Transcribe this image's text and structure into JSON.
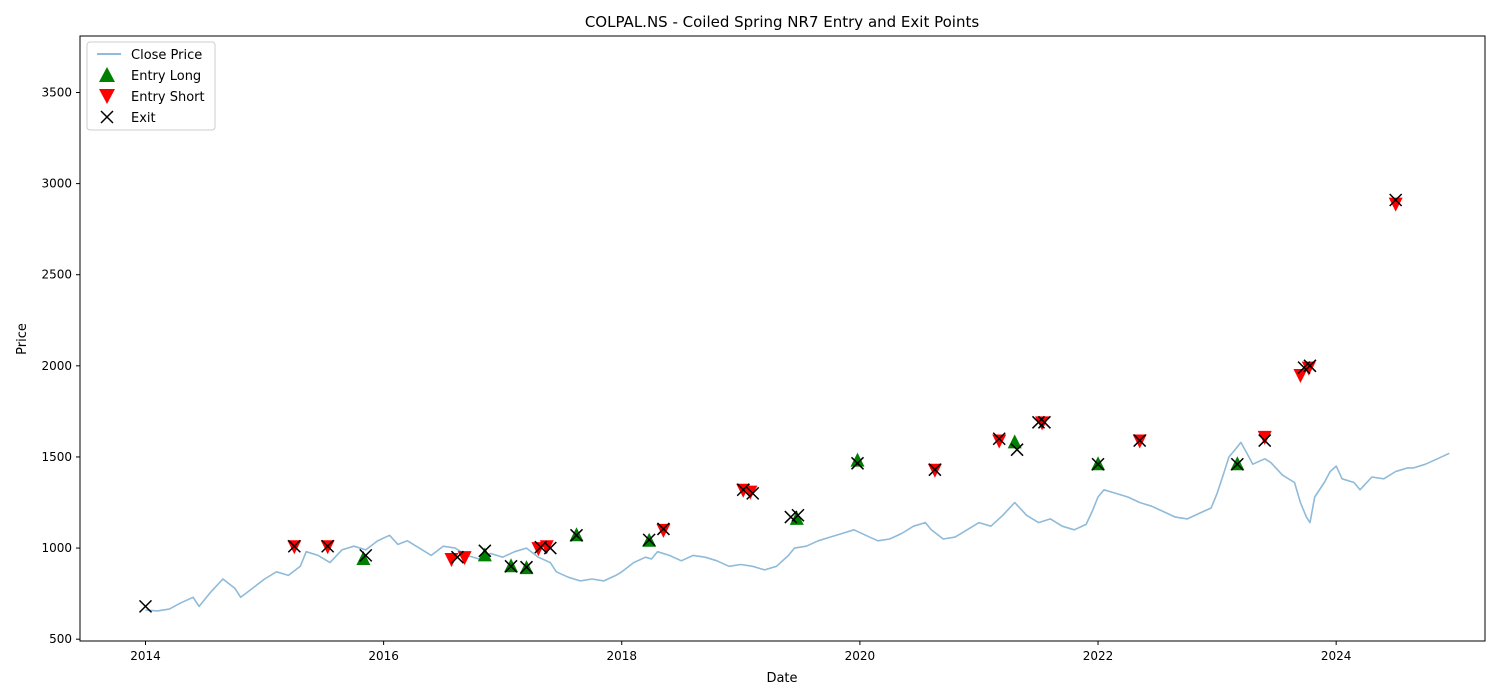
{
  "chart_data": {
    "type": "line",
    "title": "COLPAL.NS - Coiled Spring NR7 Entry and Exit Points",
    "xlabel": "Date",
    "ylabel": "Price",
    "xlim": [
      2013.45,
      2025.25
    ],
    "ylim": [
      490,
      3810
    ],
    "x_ticks": [
      2014,
      2016,
      2018,
      2020,
      2022,
      2024
    ],
    "x_tick_labels": [
      "2014",
      "2016",
      "2018",
      "2020",
      "2022",
      "2024"
    ],
    "y_ticks": [
      500,
      1000,
      1500,
      2000,
      2500,
      3000,
      3500
    ],
    "y_tick_labels": [
      "500",
      "1000",
      "1500",
      "2000",
      "2500",
      "3000",
      "3500"
    ],
    "legend_position": "top-left",
    "colors": {
      "close": "#1f77b4",
      "entry_long": "#008000",
      "entry_short": "#ff0000",
      "exit": "#000000"
    },
    "series": [
      {
        "name": "Close Price",
        "legend_label": "Close Price",
        "points": [
          [
            2014.0,
            660
          ],
          [
            2014.1,
            655
          ],
          [
            2014.2,
            665
          ],
          [
            2014.3,
            700
          ],
          [
            2014.4,
            730
          ],
          [
            2014.45,
            680
          ],
          [
            2014.55,
            760
          ],
          [
            2014.65,
            830
          ],
          [
            2014.75,
            780
          ],
          [
            2014.8,
            730
          ],
          [
            2014.9,
            780
          ],
          [
            2015.0,
            830
          ],
          [
            2015.1,
            870
          ],
          [
            2015.2,
            850
          ],
          [
            2015.3,
            900
          ],
          [
            2015.35,
            980
          ],
          [
            2015.45,
            960
          ],
          [
            2015.55,
            920
          ],
          [
            2015.65,
            990
          ],
          [
            2015.75,
            1010
          ],
          [
            2015.85,
            990
          ],
          [
            2015.95,
            1040
          ],
          [
            2016.05,
            1070
          ],
          [
            2016.12,
            1020
          ],
          [
            2016.2,
            1040
          ],
          [
            2016.3,
            1000
          ],
          [
            2016.4,
            960
          ],
          [
            2016.5,
            1010
          ],
          [
            2016.6,
            1000
          ],
          [
            2016.7,
            960
          ],
          [
            2016.8,
            940
          ],
          [
            2016.9,
            970
          ],
          [
            2017.0,
            950
          ],
          [
            2017.1,
            980
          ],
          [
            2017.2,
            1000
          ],
          [
            2017.3,
            950
          ],
          [
            2017.4,
            920
          ],
          [
            2017.45,
            870
          ],
          [
            2017.55,
            840
          ],
          [
            2017.65,
            820
          ],
          [
            2017.75,
            830
          ],
          [
            2017.85,
            820
          ],
          [
            2017.95,
            850
          ],
          [
            2018.0,
            870
          ],
          [
            2018.1,
            920
          ],
          [
            2018.2,
            950
          ],
          [
            2018.25,
            940
          ],
          [
            2018.3,
            980
          ],
          [
            2018.4,
            960
          ],
          [
            2018.5,
            930
          ],
          [
            2018.6,
            960
          ],
          [
            2018.7,
            950
          ],
          [
            2018.8,
            930
          ],
          [
            2018.9,
            900
          ],
          [
            2019.0,
            910
          ],
          [
            2019.1,
            900
          ],
          [
            2019.2,
            880
          ],
          [
            2019.3,
            900
          ],
          [
            2019.4,
            960
          ],
          [
            2019.45,
            1000
          ],
          [
            2019.55,
            1010
          ],
          [
            2019.65,
            1040
          ],
          [
            2019.75,
            1060
          ],
          [
            2019.85,
            1080
          ],
          [
            2019.95,
            1100
          ],
          [
            2020.05,
            1070
          ],
          [
            2020.15,
            1040
          ],
          [
            2020.25,
            1050
          ],
          [
            2020.35,
            1080
          ],
          [
            2020.45,
            1120
          ],
          [
            2020.55,
            1140
          ],
          [
            2020.6,
            1100
          ],
          [
            2020.7,
            1050
          ],
          [
            2020.8,
            1060
          ],
          [
            2020.9,
            1100
          ],
          [
            2021.0,
            1140
          ],
          [
            2021.1,
            1120
          ],
          [
            2021.2,
            1180
          ],
          [
            2021.3,
            1250
          ],
          [
            2021.4,
            1180
          ],
          [
            2021.5,
            1140
          ],
          [
            2021.6,
            1160
          ],
          [
            2021.7,
            1120
          ],
          [
            2021.8,
            1100
          ],
          [
            2021.9,
            1130
          ],
          [
            2021.95,
            1200
          ],
          [
            2022.0,
            1280
          ],
          [
            2022.05,
            1320
          ],
          [
            2022.15,
            1300
          ],
          [
            2022.25,
            1280
          ],
          [
            2022.35,
            1250
          ],
          [
            2022.45,
            1230
          ],
          [
            2022.55,
            1200
          ],
          [
            2022.65,
            1170
          ],
          [
            2022.75,
            1160
          ],
          [
            2022.85,
            1190
          ],
          [
            2022.95,
            1220
          ],
          [
            2023.0,
            1300
          ],
          [
            2023.05,
            1400
          ],
          [
            2023.1,
            1500
          ],
          [
            2023.15,
            1540
          ],
          [
            2023.2,
            1580
          ],
          [
            2023.25,
            1520
          ],
          [
            2023.3,
            1460
          ],
          [
            2023.4,
            1490
          ],
          [
            2023.45,
            1470
          ],
          [
            2023.55,
            1400
          ],
          [
            2023.65,
            1360
          ],
          [
            2023.7,
            1250
          ],
          [
            2023.75,
            1170
          ],
          [
            2023.78,
            1140
          ],
          [
            2023.82,
            1280
          ],
          [
            2023.9,
            1360
          ],
          [
            2023.95,
            1420
          ],
          [
            2024.0,
            1450
          ],
          [
            2024.05,
            1380
          ],
          [
            2024.15,
            1360
          ],
          [
            2024.2,
            1320
          ],
          [
            2024.3,
            1390
          ],
          [
            2024.4,
            1380
          ],
          [
            2024.5,
            1420
          ],
          [
            2024.6,
            1440
          ],
          [
            2024.65,
            1440
          ],
          [
            2024.75,
            1460
          ],
          [
            2024.85,
            1490
          ],
          [
            2024.95,
            1520
          ]
        ]
      },
      {
        "name": "Entry Long",
        "legend_label": "Entry Long",
        "points": [
          [
            2015.83,
            940
          ],
          [
            2016.85,
            960
          ],
          [
            2017.07,
            900
          ],
          [
            2017.2,
            890
          ],
          [
            2017.62,
            1070
          ],
          [
            2018.23,
            1040
          ],
          [
            2019.47,
            1160
          ],
          [
            2019.98,
            1480
          ],
          [
            2021.3,
            1580
          ],
          [
            2022.0,
            1460
          ],
          [
            2023.17,
            1460
          ]
        ]
      },
      {
        "name": "Entry Short",
        "legend_label": "Entry Short",
        "points": [
          [
            2015.25,
            1010
          ],
          [
            2015.53,
            1010
          ],
          [
            2016.57,
            940
          ],
          [
            2016.68,
            950
          ],
          [
            2017.3,
            1000
          ],
          [
            2017.37,
            1010
          ],
          [
            2018.35,
            1100
          ],
          [
            2019.02,
            1320
          ],
          [
            2019.08,
            1310
          ],
          [
            2020.63,
            1430
          ],
          [
            2021.17,
            1590
          ],
          [
            2021.53,
            1690
          ],
          [
            2022.35,
            1590
          ],
          [
            2023.4,
            1610
          ],
          [
            2023.7,
            1950
          ],
          [
            2023.77,
            1990
          ],
          [
            2024.5,
            2890
          ]
        ]
      },
      {
        "name": "Exit",
        "legend_label": "Exit",
        "points": [
          [
            2014.0,
            680
          ],
          [
            2015.25,
            1010
          ],
          [
            2015.53,
            1010
          ],
          [
            2015.85,
            960
          ],
          [
            2016.62,
            950
          ],
          [
            2016.85,
            985
          ],
          [
            2017.07,
            900
          ],
          [
            2017.2,
            895
          ],
          [
            2017.32,
            1005
          ],
          [
            2017.4,
            1000
          ],
          [
            2017.62,
            1070
          ],
          [
            2018.23,
            1045
          ],
          [
            2018.35,
            1105
          ],
          [
            2019.02,
            1320
          ],
          [
            2019.1,
            1300
          ],
          [
            2019.42,
            1170
          ],
          [
            2019.48,
            1180
          ],
          [
            2019.98,
            1465
          ],
          [
            2020.63,
            1430
          ],
          [
            2021.17,
            1600
          ],
          [
            2021.32,
            1540
          ],
          [
            2021.5,
            1690
          ],
          [
            2021.55,
            1690
          ],
          [
            2022.0,
            1460
          ],
          [
            2022.35,
            1590
          ],
          [
            2023.17,
            1460
          ],
          [
            2023.4,
            1590
          ],
          [
            2023.73,
            1990
          ],
          [
            2023.78,
            2000
          ],
          [
            2024.5,
            2910
          ]
        ]
      }
    ]
  }
}
